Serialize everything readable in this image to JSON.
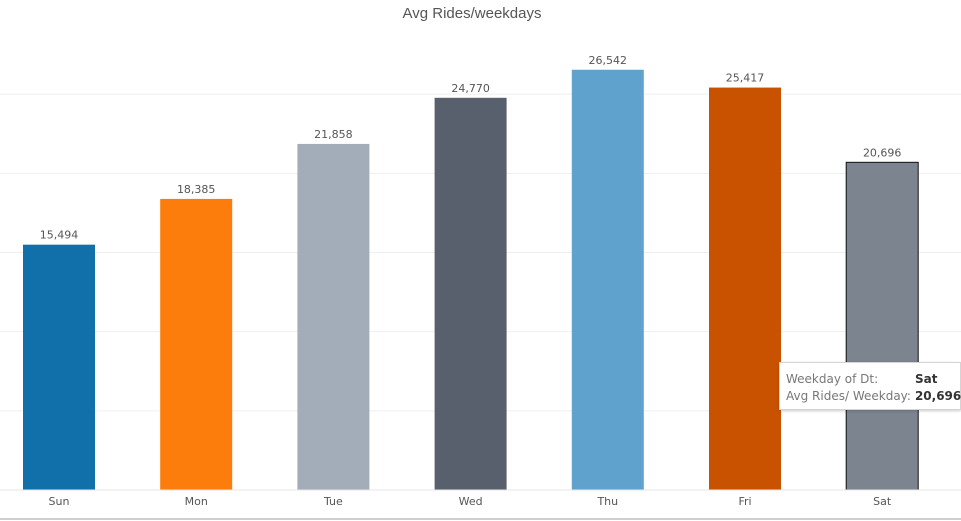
{
  "chart_data": {
    "type": "bar",
    "title": "Avg Rides/weekdays",
    "categories": [
      "Sun",
      "Mon",
      "Tue",
      "Wed",
      "Thu",
      "Fri",
      "Sat"
    ],
    "values": [
      15494,
      18385,
      21858,
      24770,
      26542,
      25417,
      20696
    ],
    "value_labels": [
      "15,494",
      "18,385",
      "21,858",
      "24,770",
      "26,542",
      "25,417",
      "20,696"
    ],
    "colors": [
      "#1170aa",
      "#fc7d0b",
      "#a3acb9",
      "#57606c",
      "#5fa2ce",
      "#c85200",
      "#7b848f"
    ],
    "ylim": [
      0,
      30000
    ],
    "grid": true,
    "gridlines": [
      5000,
      10000,
      15000,
      20000,
      25000
    ],
    "highlighted_index": 6,
    "xlabel": "",
    "ylabel": ""
  },
  "tooltip": {
    "key1": "Weekday of Dt:",
    "value1": "Sat",
    "key2": "Avg Rides/ Weekday:",
    "value2": "20,696"
  }
}
